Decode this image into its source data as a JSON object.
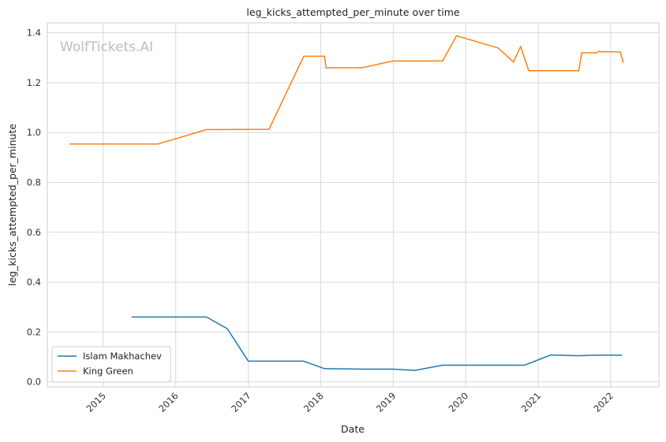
{
  "chart_data": {
    "type": "line",
    "title": "leg_kicks_attempted_per_minute over time",
    "xlabel": "Date",
    "ylabel": "leg_kicks_attempted_per_minute",
    "watermark": "WolfTickets.AI",
    "xlim": [
      "2014-03-25",
      "2022-09-01"
    ],
    "ylim": [
      -0.02,
      1.44
    ],
    "x_ticks": [
      "2015",
      "2016",
      "2017",
      "2018",
      "2019",
      "2020",
      "2021",
      "2022"
    ],
    "y_ticks": [
      "0.0",
      "0.2",
      "0.4",
      "0.6",
      "0.8",
      "1.0",
      "1.2",
      "1.4"
    ],
    "grid": true,
    "legend_position": "lower-left",
    "series": [
      {
        "name": "Islam Makhachev",
        "color": "#1f77b4",
        "points": [
          {
            "x": "2015-05-23",
            "y": 0.26
          },
          {
            "x": "2016-06-04",
            "y": 0.26
          },
          {
            "x": "2016-09-17",
            "y": 0.213
          },
          {
            "x": "2017-01-01",
            "y": 0.083
          },
          {
            "x": "2017-10-07",
            "y": 0.083
          },
          {
            "x": "2018-01-20",
            "y": 0.053
          },
          {
            "x": "2018-07-28",
            "y": 0.051
          },
          {
            "x": "2018-12-29",
            "y": 0.051
          },
          {
            "x": "2019-04-20",
            "y": 0.046
          },
          {
            "x": "2019-09-07",
            "y": 0.067
          },
          {
            "x": "2020-10-24",
            "y": 0.067
          },
          {
            "x": "2021-03-06",
            "y": 0.108
          },
          {
            "x": "2021-07-17",
            "y": 0.105
          },
          {
            "x": "2021-10-30",
            "y": 0.107
          },
          {
            "x": "2022-02-26",
            "y": 0.107
          }
        ]
      },
      {
        "name": "King Green",
        "color": "#ff7f0e",
        "points": [
          {
            "x": "2014-07-16",
            "y": 0.954
          },
          {
            "x": "2015-10-03",
            "y": 0.954
          },
          {
            "x": "2016-06-04",
            "y": 1.012
          },
          {
            "x": "2017-04-15",
            "y": 1.013
          },
          {
            "x": "2017-10-07",
            "y": 1.306
          },
          {
            "x": "2018-01-20",
            "y": 1.306
          },
          {
            "x": "2018-01-27",
            "y": 1.26
          },
          {
            "x": "2018-07-28",
            "y": 1.26
          },
          {
            "x": "2018-12-29",
            "y": 1.287
          },
          {
            "x": "2019-09-07",
            "y": 1.287
          },
          {
            "x": "2019-11-16",
            "y": 1.388
          },
          {
            "x": "2020-06-13",
            "y": 1.339
          },
          {
            "x": "2020-08-29",
            "y": 1.283
          },
          {
            "x": "2020-10-04",
            "y": 1.345
          },
          {
            "x": "2020-11-14",
            "y": 1.248
          },
          {
            "x": "2021-07-24",
            "y": 1.248
          },
          {
            "x": "2021-08-08",
            "y": 1.32
          },
          {
            "x": "2021-10-23",
            "y": 1.32
          },
          {
            "x": "2021-10-30",
            "y": 1.325
          },
          {
            "x": "2022-02-19",
            "y": 1.323
          },
          {
            "x": "2022-03-05",
            "y": 1.28
          }
        ]
      }
    ]
  }
}
